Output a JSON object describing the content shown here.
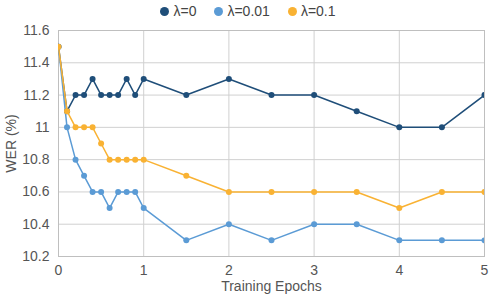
{
  "chart_data": {
    "type": "line",
    "x_label": "Training Epochs",
    "y_label": "WER (%)",
    "x": [
      0,
      0.1,
      0.2,
      0.3,
      0.4,
      0.5,
      0.6,
      0.7,
      0.8,
      0.9,
      1,
      1.5,
      2,
      2.5,
      3,
      3.5,
      4,
      4.5,
      5
    ],
    "series": [
      {
        "name": "λ=0",
        "color": "#1f4e79",
        "marker": "circle",
        "values": [
          11.5,
          11.1,
          11.2,
          11.2,
          11.3,
          11.2,
          11.2,
          11.2,
          11.3,
          11.2,
          11.3,
          11.2,
          11.3,
          11.2,
          11.2,
          11.1,
          11.0,
          11.0,
          11.2
        ]
      },
      {
        "name": "λ=0.01",
        "color": "#5b9bd5",
        "marker": "circle",
        "values": [
          11.5,
          11.0,
          10.8,
          10.7,
          10.6,
          10.6,
          10.5,
          10.6,
          10.6,
          10.6,
          10.5,
          10.3,
          10.4,
          10.3,
          10.4,
          10.4,
          10.3,
          10.3,
          10.3
        ]
      },
      {
        "name": "λ=0.1",
        "color": "#f9b233",
        "marker": "circle",
        "values": [
          11.5,
          11.1,
          11.0,
          11.0,
          11.0,
          10.9,
          10.8,
          10.8,
          10.8,
          10.8,
          10.8,
          10.7,
          10.6,
          10.6,
          10.6,
          10.6,
          10.5,
          10.6,
          10.6
        ]
      }
    ],
    "xlim": [
      0,
      5
    ],
    "xticks": [
      0,
      1,
      2,
      3,
      4,
      5
    ],
    "ylim": [
      10.2,
      11.6
    ],
    "yticks": [
      10.2,
      10.4,
      10.6,
      10.8,
      11,
      11.2,
      11.4,
      11.6
    ],
    "grid": true,
    "legend": "top"
  }
}
